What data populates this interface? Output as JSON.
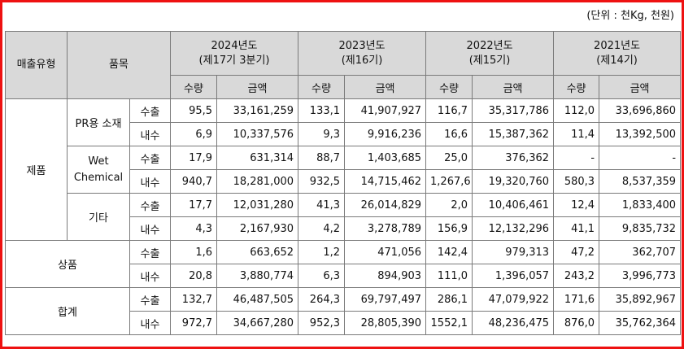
{
  "unit_note": "(단위 : 천Kg, 천원)",
  "headers": {
    "type": "매출유형",
    "item": "품목",
    "qty": "수량",
    "amt": "금액",
    "periods": [
      {
        "year": "2024년도",
        "term": "(제17기 3분기)"
      },
      {
        "year": "2023년도",
        "term": "(제16기)"
      },
      {
        "year": "2022년도",
        "term": "(제15기)"
      },
      {
        "year": "2021년도",
        "term": "(제14기)"
      }
    ]
  },
  "sales_labels": {
    "export": "수출",
    "domestic": "내수"
  },
  "groups": {
    "product": {
      "label": "제품",
      "items": [
        {
          "name": "PR용 소재",
          "export": [
            "95,5",
            "33,161,259",
            "133,1",
            "41,907,927",
            "116,7",
            "35,317,786",
            "112,0",
            "33,696,860"
          ],
          "domestic": [
            "6,9",
            "10,337,576",
            "9,3",
            "9,916,236",
            "16,6",
            "15,387,362",
            "11,4",
            "13,392,500"
          ]
        },
        {
          "name_line1": "Wet",
          "name_line2": "Chemical",
          "export": [
            "17,9",
            "631,314",
            "88,7",
            "1,403,685",
            "25,0",
            "376,362",
            "-",
            "-"
          ],
          "domestic": [
            "940,7",
            "18,281,000",
            "932,5",
            "14,715,462",
            "1,267,6",
            "19,320,760",
            "580,3",
            "8,537,359"
          ]
        },
        {
          "name": "기타",
          "export": [
            "17,7",
            "12,031,280",
            "41,3",
            "26,014,829",
            "2,0",
            "10,406,461",
            "12,4",
            "1,833,400"
          ],
          "domestic": [
            "4,3",
            "2,167,930",
            "4,2",
            "3,278,789",
            "156,9",
            "12,132,296",
            "41,1",
            "9,835,732"
          ]
        }
      ]
    },
    "goods": {
      "label": "상품",
      "export": [
        "1,6",
        "663,652",
        "1,2",
        "471,056",
        "142,4",
        "979,313",
        "47,2",
        "362,707"
      ],
      "domestic": [
        "20,8",
        "3,880,774",
        "6,3",
        "894,903",
        "111,0",
        "1,396,057",
        "243,2",
        "3,996,773"
      ]
    },
    "total": {
      "label": "합계",
      "export": [
        "132,7",
        "46,487,505",
        "264,3",
        "69,797,497",
        "286,1",
        "47,079,922",
        "171,6",
        "35,892,967"
      ],
      "domestic": [
        "972,7",
        "34,667,280",
        "952,3",
        "28,805,390",
        "1552,1",
        "48,236,475",
        "876,0",
        "35,762,364"
      ]
    }
  }
}
